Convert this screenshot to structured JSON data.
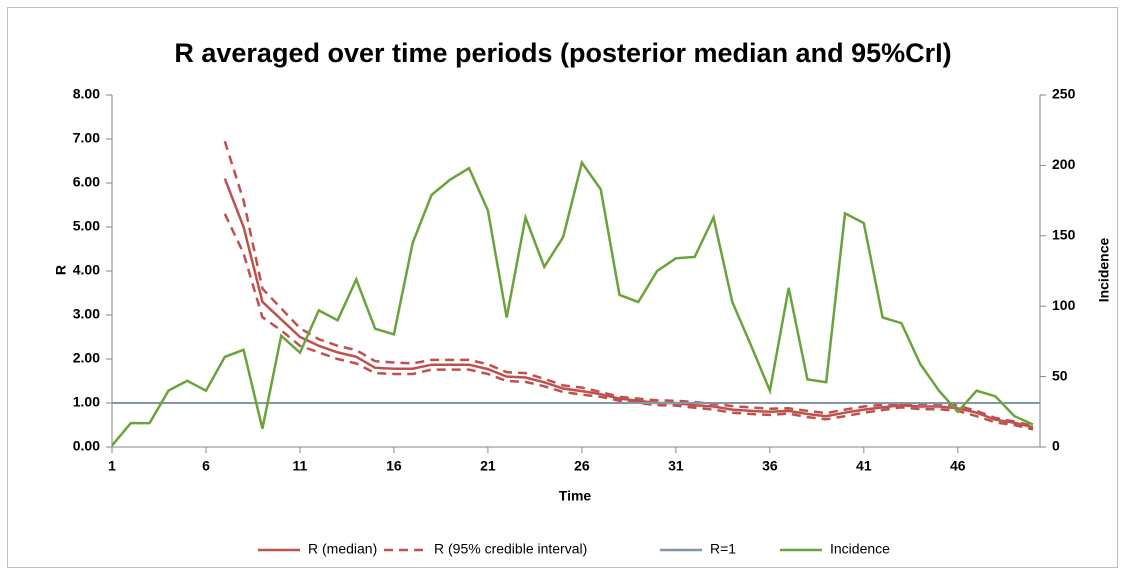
{
  "chart_data": {
    "type": "line",
    "title": "R averaged over time periods (posterior median and 95%CrI)",
    "x_label": "Time",
    "y_label": "R",
    "y2_label": "Incidence",
    "x": [
      1,
      2,
      3,
      4,
      5,
      6,
      7,
      8,
      9,
      10,
      11,
      12,
      13,
      14,
      15,
      16,
      17,
      18,
      19,
      20,
      21,
      22,
      23,
      24,
      25,
      26,
      27,
      28,
      29,
      30,
      31,
      32,
      33,
      34,
      35,
      36,
      37,
      38,
      39,
      40,
      41,
      42,
      43,
      44,
      45,
      46,
      47,
      48,
      49,
      50
    ],
    "xlim": [
      1,
      50
    ],
    "xticks": [
      1,
      6,
      11,
      16,
      21,
      26,
      31,
      36,
      41,
      46
    ],
    "ylim": [
      0,
      8
    ],
    "yticks": [
      {
        "value": 0,
        "label": "0.00"
      },
      {
        "value": 1,
        "label": "1.00"
      },
      {
        "value": 2,
        "label": "2.00"
      },
      {
        "value": 3,
        "label": "3.00"
      },
      {
        "value": 4,
        "label": "4.00"
      },
      {
        "value": 5,
        "label": "5.00"
      },
      {
        "value": 6,
        "label": "6.00"
      },
      {
        "value": 7,
        "label": "7.00"
      },
      {
        "value": 8,
        "label": "8.00"
      }
    ],
    "y2lim": [
      0,
      250
    ],
    "y2ticks": [
      0,
      50,
      100,
      150,
      200,
      250
    ],
    "series": [
      {
        "name": "R (median)",
        "color": "#c0504d",
        "dashed": false,
        "values": [
          null,
          null,
          null,
          null,
          null,
          null,
          6.1,
          5.0,
          3.3,
          2.9,
          2.5,
          2.3,
          2.15,
          2.05,
          1.8,
          1.78,
          1.78,
          1.87,
          1.87,
          1.87,
          1.77,
          1.6,
          1.58,
          1.47,
          1.33,
          1.27,
          1.2,
          1.1,
          1.05,
          1.0,
          1.0,
          0.95,
          0.92,
          0.85,
          0.82,
          0.8,
          0.82,
          0.75,
          0.7,
          0.78,
          0.85,
          0.9,
          0.95,
          0.92,
          0.92,
          0.88,
          0.78,
          0.62,
          0.55,
          0.45
        ]
      },
      {
        "name": "R (95% credible interval)",
        "color": "#c0504d",
        "dashed": true,
        "upper": [
          null,
          null,
          null,
          null,
          null,
          null,
          6.95,
          5.6,
          3.6,
          3.15,
          2.7,
          2.45,
          2.3,
          2.2,
          1.95,
          1.92,
          1.9,
          1.98,
          1.98,
          1.98,
          1.88,
          1.7,
          1.68,
          1.55,
          1.4,
          1.35,
          1.25,
          1.14,
          1.1,
          1.06,
          1.05,
          1.02,
          0.98,
          0.93,
          0.9,
          0.87,
          0.88,
          0.82,
          0.77,
          0.85,
          0.92,
          0.96,
          1.0,
          0.98,
          0.98,
          0.94,
          0.82,
          0.66,
          0.58,
          0.48
        ],
        "lower": [
          null,
          null,
          null,
          null,
          null,
          null,
          5.3,
          4.4,
          2.95,
          2.65,
          2.3,
          2.15,
          2.0,
          1.9,
          1.68,
          1.66,
          1.66,
          1.76,
          1.76,
          1.76,
          1.66,
          1.5,
          1.48,
          1.38,
          1.25,
          1.19,
          1.14,
          1.05,
          1.0,
          0.95,
          0.94,
          0.89,
          0.85,
          0.78,
          0.75,
          0.73,
          0.76,
          0.68,
          0.63,
          0.7,
          0.78,
          0.84,
          0.9,
          0.86,
          0.86,
          0.82,
          0.7,
          0.56,
          0.5,
          0.4
        ]
      },
      {
        "name": "R=1",
        "color": "#7f96ad",
        "value": 1
      },
      {
        "name": "Incidence",
        "color": "#6aa33a",
        "axis": "y2",
        "values": [
          1,
          17,
          17,
          40,
          47,
          40,
          64,
          69,
          13,
          79,
          67,
          97,
          90,
          119,
          84,
          80,
          145,
          179,
          190,
          198,
          168,
          92,
          163,
          128,
          149,
          202,
          183,
          108,
          103,
          125,
          134,
          135,
          163,
          103,
          72,
          40,
          113,
          48,
          46,
          166,
          159,
          92,
          88,
          59,
          40,
          25,
          40,
          36,
          22,
          16
        ]
      }
    ]
  }
}
